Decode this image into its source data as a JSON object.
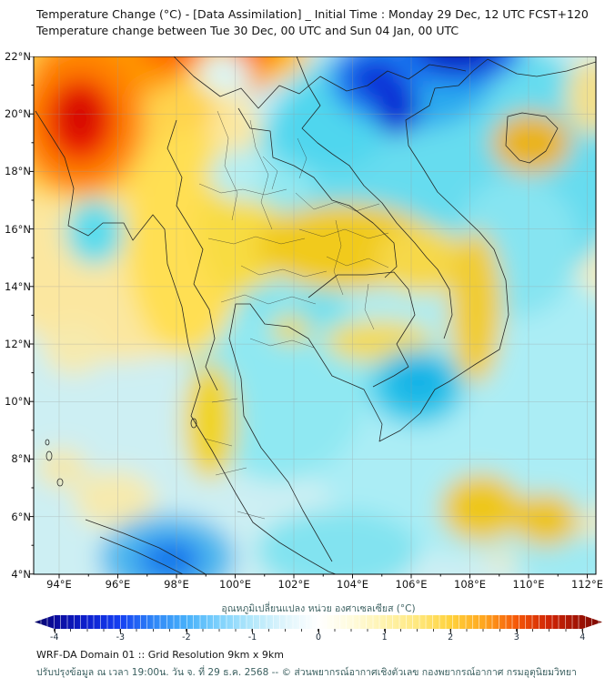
{
  "title": {
    "line1": "Temperature Change (°C) - [Data Assimilation] _ Initial Time : Monday 29 Dec, 12 UTC FCST+120",
    "line2": "Temperature change between Tue 30 Dec, 00 UTC and Sun 04 Jan, 00 UTC"
  },
  "map": {
    "y_axis_labels": [
      "22°N",
      "20°N",
      "18°N",
      "16°N",
      "14°N",
      "12°N",
      "10°N",
      "8°N",
      "6°N",
      "4°N"
    ],
    "x_axis_labels": [
      "94°E",
      "96°E",
      "98°E",
      "100°E",
      "102°E",
      "104°E",
      "106°E",
      "108°E",
      "110°E",
      "112°E"
    ]
  },
  "colorbar": {
    "title": "อุณหภูมิเปลี่ยนแปลง หน่วย องศาเซลเซียส (°C)",
    "tick_labels": [
      "-4",
      "-3",
      "-2",
      "-1",
      "0",
      "1",
      "2",
      "3",
      "4"
    ],
    "min_c": -4,
    "max_c": 4,
    "cold_color": "#1540f2",
    "zero_color": "#ffffff",
    "warm_color": "#f55708"
  },
  "footer": {
    "line1": "WRF-DA Domain 01 :: Grid Resolution 9km x 9km",
    "line2": "ปรับปรุงข้อมูล ณ เวลา 19:00น. วัน จ. ที่ 29 ธ.ค. 2568 -- © ส่วนพยากรณ์อากาศเชิงตัวเลข กองพยากรณ์อากาศ กรมอุตุนิยมวิทยา"
  },
  "chart_data": {
    "type": "heatmap",
    "title": "Temperature change (°C), Tue 30 Dec 00 UTC to Sun 04 Jan 00 UTC",
    "x_range_deg_east": [
      94,
      112
    ],
    "y_range_deg_north": [
      4,
      22
    ],
    "colorbar_range_c": [
      -4,
      4
    ],
    "notable_anomaly_centers": [
      {
        "lon_e": 94.6,
        "lat_n": 19.9,
        "value_c": 3.5,
        "note": "strong warming, west Myanmar coast"
      },
      {
        "lon_e": 96.0,
        "lat_n": 21.7,
        "value_c": 2.5,
        "note": "warming band, northern Myanmar"
      },
      {
        "lon_e": 97.9,
        "lat_n": 22.3,
        "value_c": 3.0,
        "note": "warm blob at top edge"
      },
      {
        "lon_e": 100.7,
        "lat_n": 22.2,
        "value_c": 3.0,
        "note": "warm blob, N Thailand/Laos border"
      },
      {
        "lon_e": 104.8,
        "lat_n": 21.2,
        "value_c": -3.5,
        "note": "strong cooling, N Vietnam"
      },
      {
        "lon_e": 107.6,
        "lat_n": 22.3,
        "value_c": -4.0,
        "note": "strong cooling, S China"
      },
      {
        "lon_e": 110.0,
        "lat_n": 19.0,
        "value_c": 1.5,
        "note": "warming over Hainan"
      },
      {
        "lon_e": 103.8,
        "lat_n": 15.4,
        "value_c": 1.5,
        "note": "warming band NE Thailand / S Laos"
      },
      {
        "lon_e": 108.2,
        "lat_n": 13.3,
        "value_c": 1.5,
        "note": "warming along S Vietnam coast"
      },
      {
        "lon_e": 106.2,
        "lat_n": 10.5,
        "value_c": -1.5,
        "note": "cooling, Mekong delta"
      },
      {
        "lon_e": 99.1,
        "lat_n": 9.3,
        "value_c": 1.5,
        "note": "warming, Thai peninsula"
      },
      {
        "lon_e": 97.7,
        "lat_n": 4.5,
        "value_c": -2.5,
        "note": "cooling, N Sumatra"
      },
      {
        "lon_e": 95.2,
        "lat_n": 15.9,
        "value_c": -1.0,
        "note": "cooling, Irrawaddy delta"
      }
    ]
  }
}
